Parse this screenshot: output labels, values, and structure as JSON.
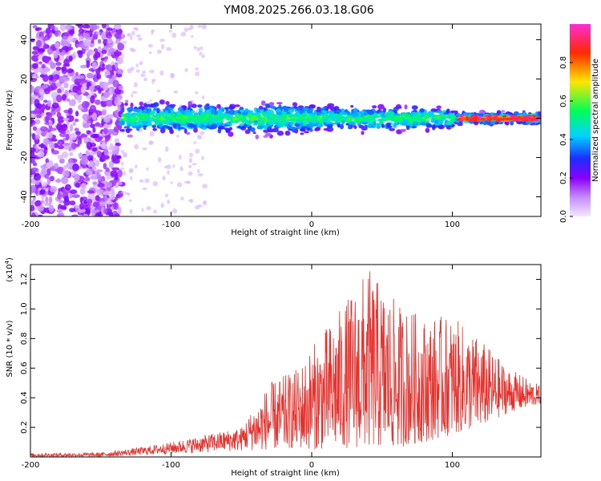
{
  "title": "YM08.2025.266.03.18.G06",
  "chart_data": [
    {
      "type": "heatmap",
      "xlabel": "Height of straight line (km)",
      "ylabel": "Frequency (Hz)",
      "xlim": [
        -200,
        163
      ],
      "ylim": [
        -50,
        48
      ],
      "x_ticks": [
        "-200",
        "-100",
        "0",
        "100"
      ],
      "y_ticks": [
        "40",
        "20",
        "0",
        "-20",
        "-40"
      ],
      "x_tick_values": [
        -200,
        -100,
        0,
        100
      ],
      "y_tick_values": [
        40,
        20,
        0,
        -20,
        -40
      ],
      "colorbar": {
        "label": "Normalized spectral amplitude",
        "range": [
          0,
          1
        ],
        "ticks": [
          "0.0",
          "0.2",
          "0.4",
          "0.6",
          "0.8"
        ],
        "tick_values": [
          0,
          0.2,
          0.4,
          0.6,
          0.8
        ],
        "colormap": [
          "#f4e8ff",
          "#c58bff",
          "#8a00ff",
          "#1c2cff",
          "#00d4ff",
          "#00ff55",
          "#ffe600",
          "#ff2a00",
          "#ff2bd4"
        ]
      },
      "regions": [
        {
          "x": [
            -200,
            -135
          ],
          "description_values": {
            "freq_band": [
              -50,
              48
            ],
            "amplitude": [
              0.02,
              0.2
            ]
          }
        },
        {
          "x": [
            -135,
            163
          ],
          "description_values": {
            "freq_band": [
              -12,
              12
            ],
            "amplitude": [
              0.1,
              0.55
            ]
          }
        },
        {
          "x": [
            105,
            163
          ],
          "description_values": {
            "freq_band": [
              -1.5,
              1.5
            ],
            "amplitude": [
              0.8,
              1.0
            ]
          }
        }
      ]
    },
    {
      "type": "line",
      "xlabel": "Height of straight line (km)",
      "ylabel": "SNR (10 * v/v)",
      "y_multiplier_label": "(x10",
      "y_multiplier_exp": "4",
      "y_multiplier_close": ")",
      "xlim": [
        -200,
        163
      ],
      "ylim": [
        0,
        1.3
      ],
      "x_ticks": [
        "-200",
        "-100",
        "0",
        "100"
      ],
      "y_ticks": [
        "0.2",
        "0.4",
        "0.6",
        "0.8",
        "1.0",
        "1.2"
      ],
      "x_tick_values": [
        -200,
        -100,
        0,
        100
      ],
      "y_tick_values": [
        0.2,
        0.4,
        0.6,
        0.8,
        1.0,
        1.2
      ],
      "color": "#e8302c",
      "envelope": {
        "x": [
          -200,
          -150,
          -125,
          -100,
          -75,
          -50,
          -30,
          -10,
          0,
          20,
          40,
          60,
          80,
          100,
          120,
          140,
          163
        ],
        "y_max": [
          0.025,
          0.03,
          0.06,
          0.1,
          0.15,
          0.2,
          0.5,
          0.6,
          0.75,
          1.0,
          1.28,
          1.05,
          0.95,
          0.95,
          0.8,
          0.6,
          0.48
        ],
        "y_min": [
          0.0,
          0.0,
          0.01,
          0.02,
          0.03,
          0.04,
          0.05,
          0.06,
          0.05,
          0.06,
          0.06,
          0.06,
          0.1,
          0.15,
          0.2,
          0.3,
          0.36
        ]
      }
    }
  ]
}
